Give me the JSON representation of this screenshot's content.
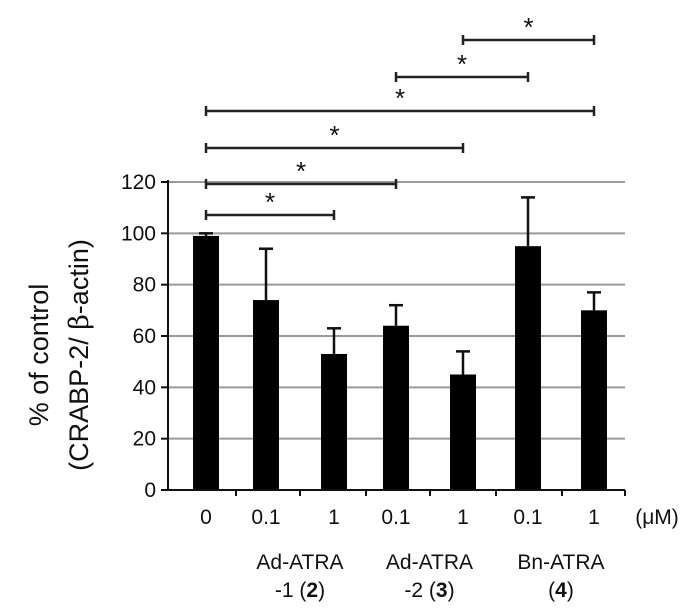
{
  "chart_data": {
    "type": "bar",
    "ylabel_line1": "% of control",
    "ylabel_line2_prefix": "(CRABP-2/ ",
    "ylabel_line2_beta": "β",
    "ylabel_line2_suffix": "-actin)",
    "ylim": [
      0,
      120
    ],
    "yticks": [
      0,
      20,
      40,
      60,
      80,
      100,
      120
    ],
    "grid": "horizontal",
    "unit_label": "(μM)",
    "categories": [
      "0",
      "0.1",
      "1",
      "0.1",
      "1",
      "0.1",
      "1"
    ],
    "values": [
      99,
      74,
      53,
      64,
      45,
      95,
      70
    ],
    "errors": [
      1,
      20,
      10,
      8,
      9,
      19,
      7
    ],
    "groups": [
      {
        "line1": "Ad-ATRA",
        "line2_prefix": "-1 (",
        "line2_bold": "2",
        "line2_suffix": ")",
        "start": 1,
        "end": 2
      },
      {
        "line1": "Ad-ATRA",
        "line2_prefix": "-2 (",
        "line2_bold": "3",
        "line2_suffix": ")",
        "start": 3,
        "end": 4
      },
      {
        "line1": "Bn-ATRA",
        "line2_prefix": "(",
        "line2_bold": "4",
        "line2_suffix": ")",
        "start": 5,
        "end": 6
      }
    ],
    "significance": [
      {
        "from": 0,
        "to": 2,
        "label": "*"
      },
      {
        "from": 0,
        "to": 4,
        "label": "*"
      },
      {
        "from": 0,
        "to": 6,
        "label": "*"
      },
      {
        "from": 3,
        "to": 5,
        "label": "*"
      },
      {
        "from": 4,
        "to": 6,
        "label": "*"
      },
      {
        "from": 0,
        "to": 8,
        "label": "*"
      }
    ]
  }
}
